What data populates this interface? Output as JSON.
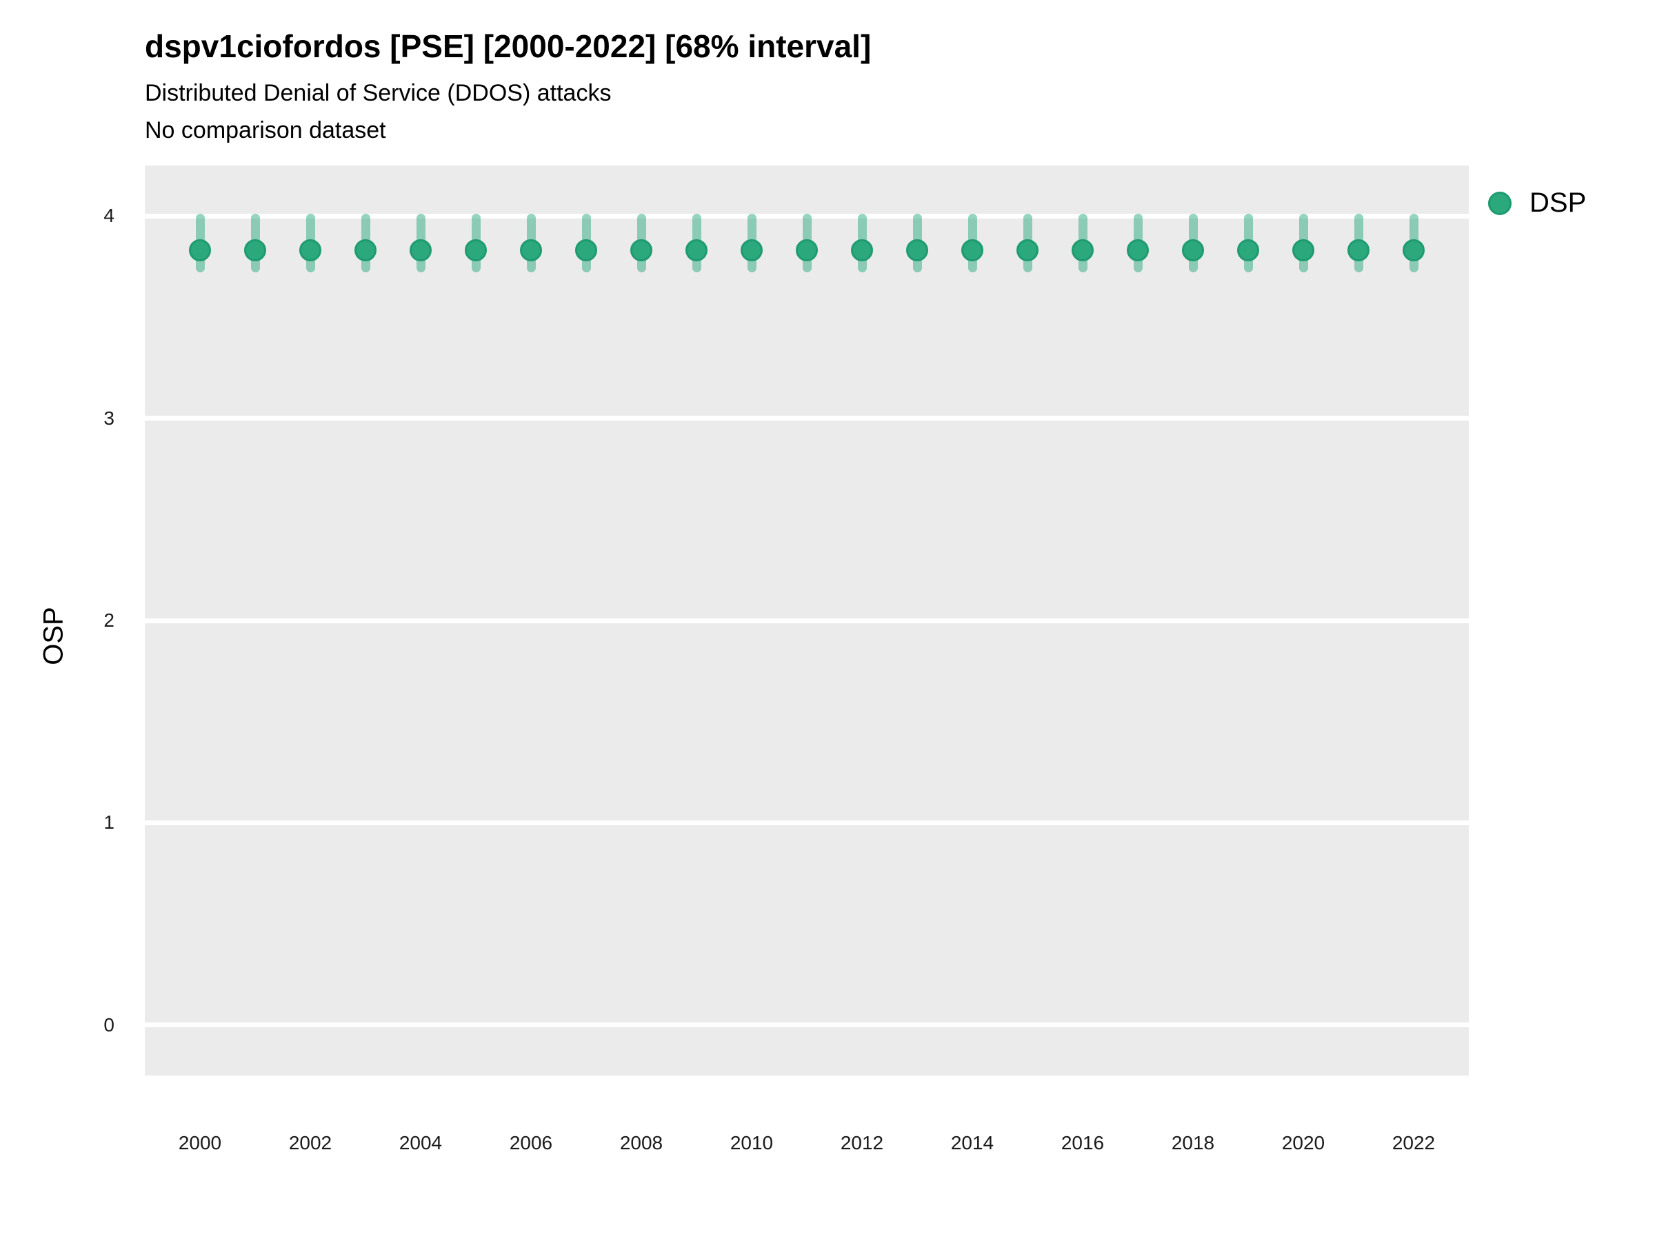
{
  "header": {
    "title": "dspv1ciofordos [PSE] [2000-2022] [68% interval]",
    "subtitle": "Distributed Denial of Service (DDOS) attacks",
    "comparison_note": "No comparison dataset"
  },
  "chart_data": {
    "type": "scatter",
    "title": "dspv1ciofordos [PSE] [2000-2022] [68% interval]",
    "subtitle": "Distributed Denial of Service (DDOS) attacks",
    "note": "No comparison dataset",
    "interval_label": "68% interval",
    "xlabel": "",
    "ylabel": "OSP",
    "x": [
      2000,
      2001,
      2002,
      2003,
      2004,
      2005,
      2006,
      2007,
      2008,
      2009,
      2010,
      2011,
      2012,
      2013,
      2014,
      2015,
      2016,
      2017,
      2018,
      2019,
      2020,
      2021,
      2022
    ],
    "series": [
      {
        "name": "DSP",
        "values": [
          3.83,
          3.83,
          3.83,
          3.83,
          3.83,
          3.83,
          3.83,
          3.83,
          3.83,
          3.83,
          3.83,
          3.83,
          3.83,
          3.83,
          3.83,
          3.83,
          3.83,
          3.83,
          3.83,
          3.83,
          3.83,
          3.83,
          3.83
        ],
        "interval_low": [
          3.72,
          3.72,
          3.72,
          3.72,
          3.72,
          3.72,
          3.72,
          3.72,
          3.72,
          3.72,
          3.72,
          3.72,
          3.72,
          3.72,
          3.72,
          3.72,
          3.72,
          3.72,
          3.72,
          3.72,
          3.72,
          3.72,
          3.72
        ],
        "interval_high": [
          4.01,
          4.01,
          4.01,
          4.01,
          4.01,
          4.01,
          4.01,
          4.01,
          4.01,
          4.01,
          4.01,
          4.01,
          4.01,
          4.01,
          4.01,
          4.01,
          4.01,
          4.01,
          4.01,
          4.01,
          4.01,
          4.01,
          4.01
        ]
      }
    ],
    "xlim": [
      1999,
      2023
    ],
    "ylim": [
      -0.25,
      4.25
    ],
    "xticks": [
      2000,
      2002,
      2004,
      2006,
      2008,
      2010,
      2012,
      2014,
      2016,
      2018,
      2020,
      2022
    ],
    "yticks": [
      0,
      1,
      2,
      3,
      4
    ],
    "grid": {
      "horizontal_major": true,
      "vertical": false,
      "color": "#ffffff"
    },
    "legend": {
      "position": "right-top",
      "entries": [
        {
          "label": "DSP",
          "color": "#2BA97D"
        }
      ]
    },
    "colors": {
      "point_fill": "#2BA97D",
      "point_stroke": "#1E9B70",
      "error_bar": "rgba(43,169,125,0.5)",
      "panel_bg": "#EBEBEB",
      "grid": "#ffffff"
    }
  }
}
